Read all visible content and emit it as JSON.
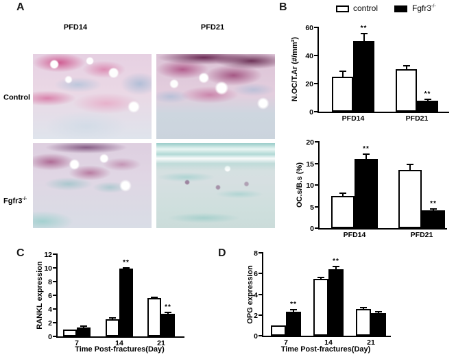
{
  "page": {
    "background": "#ffffff",
    "foreground": "#000000"
  },
  "panel_a": {
    "label": "A",
    "column_headers": [
      "PFD14",
      "PFD21"
    ],
    "row_labels": [
      {
        "base": "Control",
        "sup": ""
      },
      {
        "base": "Fgfr3",
        "sup": "-/-"
      }
    ],
    "images": [
      {
        "name": "control-pfd14",
        "row": "Control",
        "column": "PFD14",
        "stain_colors": [
          "#c93e7d",
          "#e196b9",
          "#94b2d0",
          "#e9d6e3"
        ]
      },
      {
        "name": "control-pfd21",
        "row": "Control",
        "column": "PFD21",
        "stain_colors": [
          "#60184818",
          "#a03270",
          "#96b4d2",
          "#ccd5de"
        ]
      },
      {
        "name": "fgfr3-pfd14",
        "row": "Fgfr3-/-",
        "column": "PFD14",
        "stain_colors": [
          "#94346c",
          "#76b8b8",
          "#ded5e2"
        ]
      },
      {
        "name": "fgfr3-pfd21",
        "row": "Fgfr3-/-",
        "column": "PFD21",
        "stain_colors": [
          "#87c8c4",
          "#d3dde0",
          "#784673"
        ]
      }
    ]
  },
  "panel_b": {
    "label": "B",
    "legend": [
      {
        "base": "control",
        "sup": "",
        "swatch": "#ffffff"
      },
      {
        "base": "Fgfr3",
        "sup": "-/-",
        "swatch": "#000000"
      }
    ]
  },
  "panel_c": {
    "label": "C"
  },
  "panel_d": {
    "label": "D"
  },
  "chart_data": [
    {
      "id": "B-top",
      "type": "bar",
      "panel": "B",
      "ylabel": "N.OC/T.Ar (#/mm²)",
      "xlabel": "",
      "categories": [
        "PFD14",
        "PFD21"
      ],
      "ylim": [
        0,
        60
      ],
      "yticks": [
        0,
        20,
        40,
        60
      ],
      "legend_position": "top",
      "grid": false,
      "series": [
        {
          "name": "control",
          "fill": "#ffffff",
          "values": [
            25,
            30
          ],
          "errors": [
            4.5,
            3
          ],
          "sig": [
            "",
            ""
          ]
        },
        {
          "name": "Fgfr3-/-",
          "fill": "#000000",
          "values": [
            50,
            8
          ],
          "errors": [
            6,
            1.5
          ],
          "sig": [
            "**",
            "**"
          ]
        }
      ]
    },
    {
      "id": "B-bottom",
      "type": "bar",
      "panel": "B",
      "ylabel": "OC.s/B.s (%)",
      "xlabel": "",
      "categories": [
        "PFD14",
        "PFD21"
      ],
      "ylim": [
        0,
        20
      ],
      "yticks": [
        0,
        5,
        10,
        15,
        20
      ],
      "grid": false,
      "series": [
        {
          "name": "control",
          "fill": "#ffffff",
          "values": [
            7.4,
            13.5
          ],
          "errors": [
            0.8,
            1.5
          ],
          "sig": [
            "",
            ""
          ]
        },
        {
          "name": "Fgfr3-/-",
          "fill": "#000000",
          "values": [
            16,
            4.1
          ],
          "errors": [
            1.2,
            0.4
          ],
          "sig": [
            "**",
            "**"
          ]
        }
      ]
    },
    {
      "id": "C",
      "type": "bar",
      "panel": "C",
      "ylabel": "RANKL expression",
      "xlabel": "Time Post-fractures(Day)",
      "categories": [
        "7",
        "14",
        "21"
      ],
      "ylim": [
        0,
        12
      ],
      "yticks": [
        0,
        2,
        4,
        6,
        8,
        10,
        12
      ],
      "grid": false,
      "series": [
        {
          "name": "control",
          "fill": "#ffffff",
          "values": [
            1.0,
            2.5,
            5.6
          ],
          "errors": [
            0,
            0.25,
            0.15
          ],
          "sig": [
            "",
            "",
            ""
          ]
        },
        {
          "name": "Fgfr3-/-",
          "fill": "#000000",
          "values": [
            1.3,
            9.9,
            3.3
          ],
          "errors": [
            0.35,
            0.2,
            0.3
          ],
          "sig": [
            "",
            "**",
            "**"
          ]
        }
      ]
    },
    {
      "id": "D",
      "type": "bar",
      "panel": "D",
      "ylabel": "OPG expression",
      "xlabel": "Time Post-fractures(Day)",
      "categories": [
        "7",
        "14",
        "21"
      ],
      "ylim": [
        0,
        8
      ],
      "yticks": [
        0,
        2,
        4,
        6,
        8
      ],
      "grid": false,
      "series": [
        {
          "name": "control",
          "fill": "#ffffff",
          "values": [
            1.0,
            5.5,
            2.6
          ],
          "errors": [
            0,
            0.2,
            0.2
          ],
          "sig": [
            "",
            "",
            ""
          ]
        },
        {
          "name": "Fgfr3-/-",
          "fill": "#000000",
          "values": [
            2.3,
            6.4,
            2.2
          ],
          "errors": [
            0.25,
            0.3,
            0.2
          ],
          "sig": [
            "**",
            "**",
            ""
          ]
        }
      ]
    }
  ]
}
